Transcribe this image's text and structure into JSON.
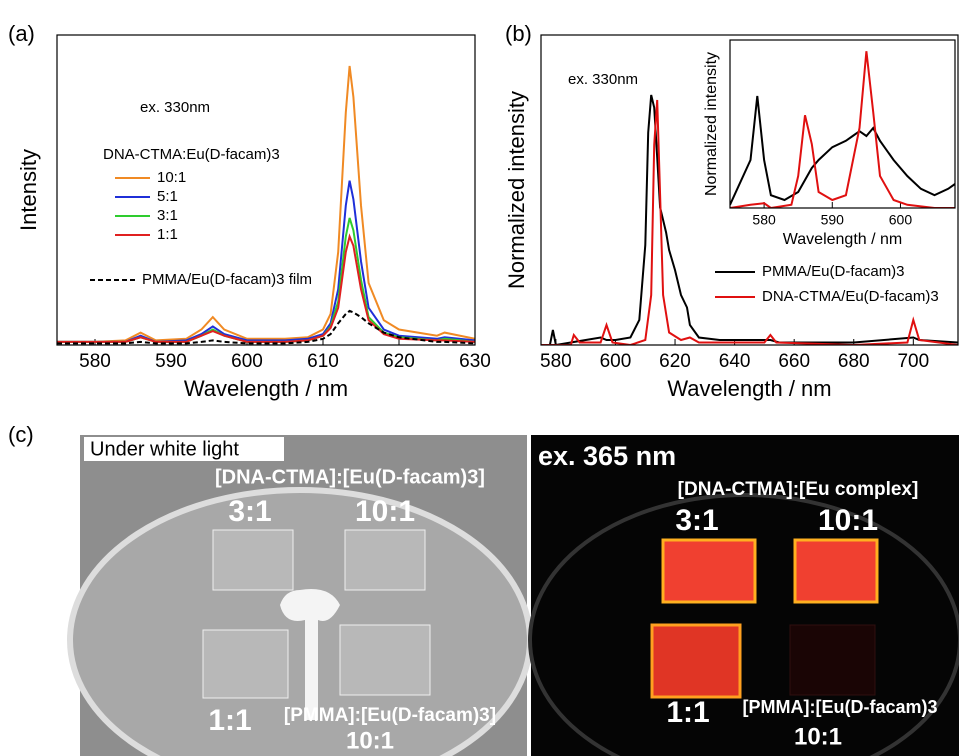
{
  "chart_data": [
    {
      "type": "line",
      "panel_label": "(a)",
      "xlabel": "Wavelength / nm",
      "ylabel": "Intensity",
      "annotation": "ex. 330nm",
      "legend_title": "DNA-CTMA:Eu(D-facam)3",
      "xlim": [
        575,
        630
      ],
      "ylim": [
        0,
        100
      ],
      "xticks": [
        580,
        590,
        600,
        610,
        620,
        630
      ],
      "series": [
        {
          "name": "10:1",
          "color": "#f08a24",
          "x": [
            575,
            580,
            584,
            586,
            588,
            592,
            594,
            595.5,
            597,
            600,
            605,
            608,
            610,
            611,
            612,
            613,
            613.5,
            614,
            615,
            616,
            618,
            620,
            625,
            626,
            630
          ],
          "values": [
            1,
            1,
            1.5,
            4,
            1.5,
            2,
            5,
            9,
            5,
            2,
            2,
            2.5,
            5,
            10,
            30,
            75,
            90,
            80,
            45,
            20,
            8,
            5,
            3,
            4,
            2
          ]
        },
        {
          "name": "5:1",
          "color": "#1f2fd8",
          "x": [
            575,
            580,
            584,
            586,
            588,
            592,
            594,
            595.5,
            597,
            600,
            605,
            608,
            610,
            611,
            612,
            613,
            613.5,
            614,
            615,
            616,
            618,
            620,
            625,
            626,
            630
          ],
          "values": [
            1,
            1,
            1,
            3,
            1,
            1.5,
            3.5,
            6,
            3.5,
            1.5,
            1.5,
            2,
            3.5,
            7,
            18,
            45,
            53,
            47,
            27,
            12,
            5,
            3,
            2,
            2.5,
            1.5
          ]
        },
        {
          "name": "3:1",
          "color": "#2ecc2e",
          "x": [
            575,
            580,
            584,
            586,
            588,
            592,
            594,
            595.5,
            597,
            600,
            605,
            608,
            610,
            611,
            612,
            613,
            613.5,
            614,
            615,
            616,
            618,
            620,
            625,
            626,
            630
          ],
          "values": [
            1,
            1,
            1,
            2.5,
            1,
            1,
            3,
            5,
            3,
            1,
            1,
            1.5,
            3,
            6,
            14,
            35,
            41,
            37,
            21,
            9,
            4,
            2.5,
            1.5,
            2,
            1
          ]
        },
        {
          "name": "1:1",
          "color": "#e02020",
          "x": [
            575,
            580,
            584,
            586,
            588,
            592,
            594,
            595.5,
            597,
            600,
            605,
            608,
            610,
            611,
            612,
            613,
            613.5,
            614,
            615,
            616,
            618,
            620,
            625,
            626,
            630
          ],
          "values": [
            1,
            1,
            1,
            2.5,
            1,
            1,
            3,
            4.5,
            3,
            1,
            1,
            1.5,
            3,
            5.5,
            12,
            30,
            35,
            32,
            18,
            8,
            3.5,
            2,
            1.5,
            1.5,
            1
          ]
        },
        {
          "name": "PMMA/Eu(D-facam)3 film",
          "color": "#000000",
          "dashed": true,
          "x": [
            575,
            580,
            584,
            586,
            588,
            592,
            594,
            595.5,
            597,
            600,
            605,
            608,
            610,
            611,
            612,
            613,
            613.5,
            614,
            615,
            616,
            618,
            620,
            625,
            626,
            630
          ],
          "values": [
            0.5,
            0.5,
            0.5,
            1,
            0.5,
            0.5,
            1,
            1.5,
            1,
            0.5,
            0.5,
            1,
            2,
            3.5,
            7,
            10,
            11,
            10.5,
            9,
            7,
            4,
            2.5,
            1,
            1,
            0.5
          ]
        }
      ]
    },
    {
      "type": "line",
      "panel_label": "(b)",
      "xlabel": "Wavelength / nm",
      "ylabel": "Normalized intensity",
      "annotation": "ex. 330nm",
      "xlim": [
        575,
        715
      ],
      "ylim": [
        0,
        1.24
      ],
      "xticks": [
        580,
        600,
        620,
        640,
        660,
        680,
        700
      ],
      "series": [
        {
          "name": "PMMA/Eu(D-facam)3",
          "color": "#000000",
          "x": [
            575,
            578,
            579,
            580,
            585,
            590,
            595,
            597,
            600,
            605,
            608,
            610,
            611,
            612,
            613,
            614,
            615,
            616,
            617,
            618,
            620,
            622,
            624,
            625,
            628,
            635,
            650,
            652,
            655,
            680,
            700,
            702,
            715
          ],
          "values": [
            0,
            0,
            0.06,
            0,
            0.01,
            0.02,
            0.03,
            0.02,
            0.02,
            0.03,
            0.1,
            0.4,
            0.85,
            1,
            0.95,
            0.75,
            0.55,
            0.5,
            0.45,
            0.38,
            0.3,
            0.2,
            0.15,
            0.08,
            0.03,
            0.02,
            0.02,
            0.02,
            0.01,
            0.01,
            0.03,
            0.02,
            0.01
          ]
        },
        {
          "name": "DNA-CTMA/Eu(D-facam)3",
          "color": "#e01010",
          "x": [
            575,
            585,
            586,
            588,
            595,
            597,
            599,
            605,
            610,
            612,
            613,
            614,
            615,
            616,
            618,
            622,
            625,
            628,
            650,
            652,
            654,
            680,
            698,
            700,
            702,
            715
          ],
          "values": [
            0,
            0,
            0.04,
            0.01,
            0.01,
            0.08,
            0.01,
            0,
            0.02,
            0.2,
            0.8,
            0.98,
            0.6,
            0.2,
            0.05,
            0.02,
            0.03,
            0.01,
            0.01,
            0.04,
            0.01,
            0,
            0.01,
            0.1,
            0.02,
            0
          ]
        }
      ]
    },
    {
      "type": "line",
      "xlabel": "Wavelength / nm",
      "ylabel": "Normalized intensity",
      "xlim": [
        575,
        608
      ],
      "ylim": [
        0,
        1.05
      ],
      "xticks": [
        580,
        590,
        600
      ],
      "series": [
        {
          "color": "#000000",
          "x": [
            575,
            578,
            579,
            580,
            581,
            583,
            585,
            587,
            588,
            590,
            592,
            593,
            594,
            595,
            596,
            597,
            599,
            601,
            603,
            605,
            607,
            608
          ],
          "values": [
            0.02,
            0.3,
            0.7,
            0.3,
            0.08,
            0.05,
            0.1,
            0.25,
            0.3,
            0.38,
            0.42,
            0.45,
            0.48,
            0.45,
            0.5,
            0.42,
            0.3,
            0.2,
            0.12,
            0.08,
            0.12,
            0.15
          ]
        },
        {
          "color": "#e01010",
          "x": [
            575,
            578,
            580,
            581,
            584,
            585,
            586,
            587,
            588,
            590,
            592,
            594,
            595,
            596,
            597,
            599,
            601,
            605,
            608
          ],
          "values": [
            0,
            0.02,
            0.03,
            0,
            0.02,
            0.2,
            0.58,
            0.4,
            0.1,
            0.05,
            0.08,
            0.5,
            0.98,
            0.6,
            0.2,
            0.05,
            0.02,
            0,
            0
          ]
        }
      ]
    }
  ],
  "photos": {
    "panel_label": "(c)",
    "left": {
      "caption": "Under white light",
      "heading": "[DNA-CTMA]:[Eu(D-facam)3]",
      "s1": "3:1",
      "s2": "10:1",
      "s3": "1:1",
      "pmma": "[PMMA]:[Eu(D-facam)3]",
      "s4": "10:1"
    },
    "right": {
      "caption": "ex. 365 nm",
      "heading": "[DNA-CTMA]:[Eu complex]",
      "s1": "3:1",
      "s2": "10:1",
      "s3": "1:1",
      "pmma": "[PMMA]:[Eu(D-facam)3",
      "s4": "10:1"
    }
  }
}
